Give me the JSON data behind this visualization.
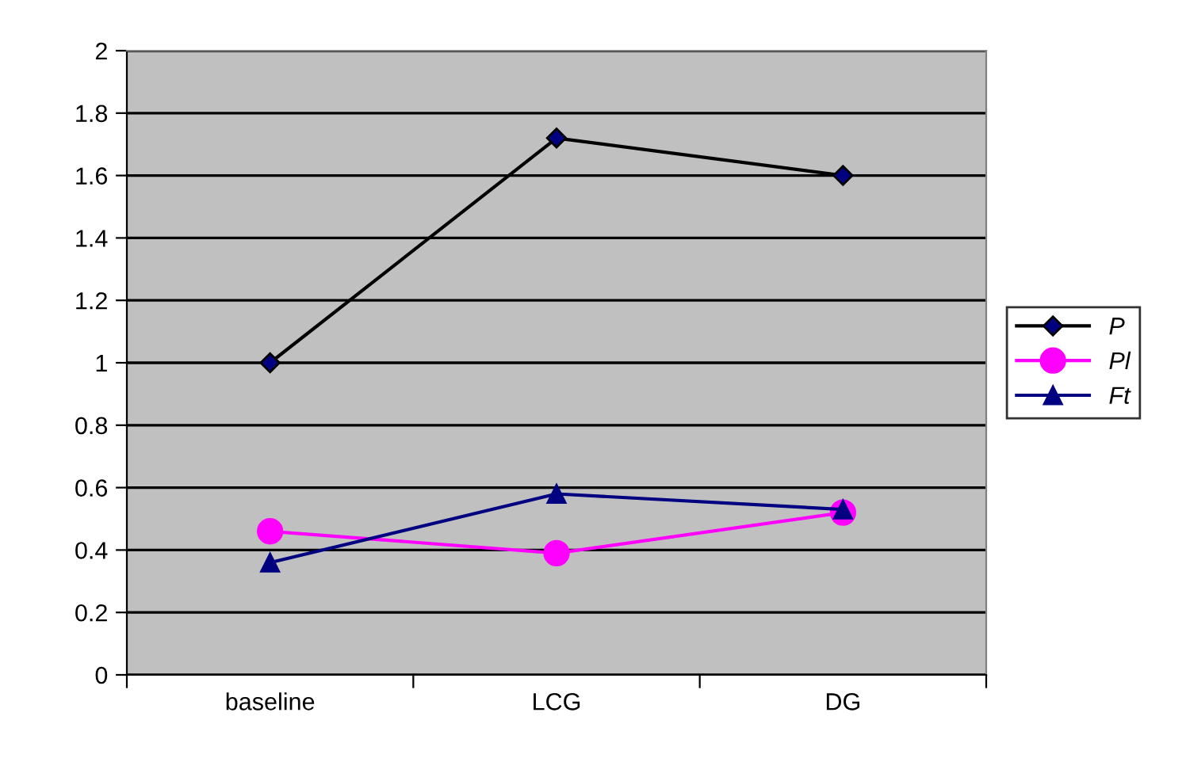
{
  "chart_data": {
    "type": "line",
    "categories": [
      "baseline",
      "LCG",
      "DG"
    ],
    "series": [
      {
        "name": "P",
        "color": "#000000",
        "marker": "diamond",
        "values": [
          1.0,
          1.72,
          1.6
        ]
      },
      {
        "name": "Pl",
        "color": "#ff00ff",
        "marker": "circle",
        "values": [
          0.46,
          0.39,
          0.52
        ]
      },
      {
        "name": "Ft",
        "color": "#000080",
        "marker": "triangle",
        "values": [
          0.36,
          0.58,
          0.53
        ]
      }
    ],
    "ylim": [
      0,
      2
    ],
    "yticks": [
      0,
      0.2,
      0.4,
      0.6,
      0.8,
      1,
      1.2,
      1.4,
      1.6,
      1.8,
      2
    ],
    "grid": "y",
    "legend": "right",
    "line_style": "solid"
  }
}
